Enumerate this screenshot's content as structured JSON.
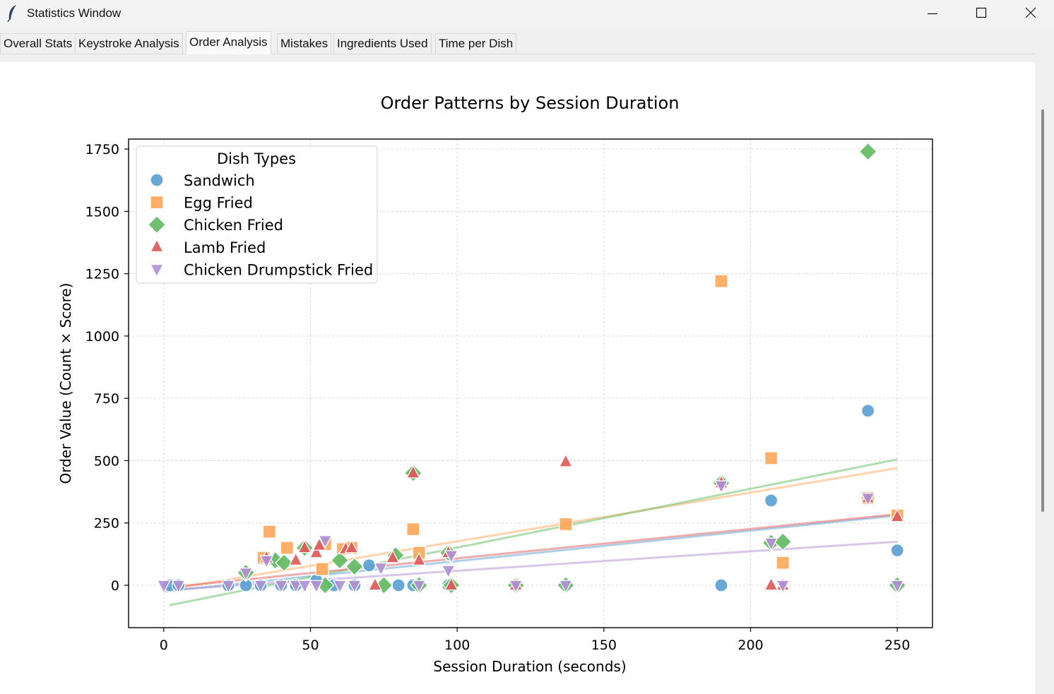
{
  "window": {
    "title": "Statistics Window",
    "icon": "feather-icon",
    "controls": [
      "minimize-icon",
      "maximize-icon",
      "close-icon"
    ]
  },
  "tabs": [
    {
      "label": "Overall Stats",
      "active": false
    },
    {
      "label": "Keystroke Analysis",
      "active": false
    },
    {
      "label": "Order Analysis",
      "active": true
    },
    {
      "label": "Mistakes",
      "active": false
    },
    {
      "label": "Ingredients Used",
      "active": false
    },
    {
      "label": "Time per Dish",
      "active": false
    }
  ],
  "chart_data": {
    "type": "scatter",
    "title": "Order Patterns by Session Duration",
    "xlabel": "Session Duration (seconds)",
    "ylabel": "Order Value (Count × Score)",
    "xlim": [
      -12,
      262
    ],
    "ylim": [
      -170,
      1790
    ],
    "xticks": [
      0,
      50,
      100,
      150,
      200,
      250
    ],
    "yticks": [
      0,
      250,
      500,
      750,
      1000,
      1250,
      1500,
      1750
    ],
    "grid": true,
    "legend": {
      "title": "Dish Types",
      "placement": "upper-left"
    },
    "series": [
      {
        "name": "Sandwich",
        "color": "#1f77b4",
        "marker": "circle",
        "x": [
          2,
          5,
          22,
          28,
          33,
          40,
          45,
          52,
          58,
          65,
          70,
          80,
          85,
          97,
          190,
          207,
          240,
          250
        ],
        "y": [
          0,
          0,
          0,
          0,
          0,
          0,
          0,
          20,
          0,
          0,
          80,
          0,
          0,
          0,
          0,
          340,
          700,
          140
        ],
        "trend": [
          [
            0,
            -25
          ],
          [
            250,
            280
          ]
        ]
      },
      {
        "name": "Egg Fried",
        "color": "#ff7f0e",
        "marker": "square",
        "x": [
          34,
          36,
          42,
          54,
          55,
          61,
          64,
          85,
          87,
          137,
          190,
          207,
          211,
          240,
          250
        ],
        "y": [
          110,
          215,
          150,
          65,
          165,
          145,
          150,
          225,
          130,
          245,
          1220,
          510,
          90,
          350,
          280
        ],
        "trend": [
          [
            0,
            -20
          ],
          [
            250,
            470
          ]
        ]
      },
      {
        "name": "Chicken Fried",
        "color": "#2ca02c",
        "marker": "diamond",
        "x": [
          28,
          38,
          41,
          48,
          55,
          60,
          65,
          75,
          79,
          85,
          87,
          97,
          98,
          120,
          137,
          190,
          207,
          211,
          240,
          250
        ],
        "y": [
          50,
          100,
          90,
          150,
          0,
          100,
          75,
          0,
          120,
          450,
          0,
          130,
          0,
          0,
          0,
          410,
          170,
          175,
          1740,
          0
        ],
        "trend": [
          [
            2,
            -80
          ],
          [
            250,
            505
          ]
        ]
      },
      {
        "name": "Lamb Fried",
        "color": "#d62728",
        "marker": "triangle-up",
        "x": [
          35,
          45,
          48,
          52,
          53,
          62,
          64,
          72,
          78,
          85,
          87,
          97,
          98,
          120,
          137,
          190,
          207,
          211,
          240,
          250
        ],
        "y": [
          110,
          100,
          150,
          130,
          160,
          145,
          150,
          0,
          110,
          450,
          100,
          130,
          0,
          0,
          495,
          410,
          0,
          0,
          350,
          275
        ],
        "trend": [
          [
            0,
            -10
          ],
          [
            250,
            285
          ]
        ]
      },
      {
        "name": "Chicken Drumpstick Fried",
        "color": "#9467bd",
        "marker": "triangle-down",
        "x": [
          0,
          5,
          22,
          28,
          33,
          35,
          40,
          45,
          48,
          52,
          55,
          60,
          65,
          74,
          87,
          97,
          98,
          120,
          137,
          190,
          207,
          211,
          240,
          250
        ],
        "y": [
          0,
          0,
          0,
          50,
          0,
          100,
          0,
          0,
          0,
          0,
          180,
          0,
          0,
          70,
          0,
          60,
          120,
          0,
          0,
          400,
          170,
          0,
          350,
          0
        ],
        "trend": [
          [
            0,
            -20
          ],
          [
            250,
            175
          ]
        ]
      }
    ]
  }
}
